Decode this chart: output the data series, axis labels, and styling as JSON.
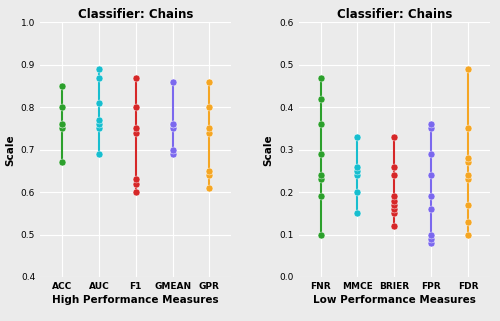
{
  "left_title": "Classifier: Chains",
  "right_title": "Classifier: Chains",
  "left_xlabel": "High Performance Measures",
  "right_xlabel": "Low Performance Measures",
  "ylabel": "Scale",
  "left_categories": [
    "ACC",
    "AUC",
    "F1",
    "GMEAN",
    "GPR"
  ],
  "right_categories": [
    "FNR",
    "MMCE",
    "BRIER",
    "FPR",
    "FDR"
  ],
  "left_ylim": [
    0.4,
    1.0
  ],
  "right_ylim": [
    0.0,
    0.6
  ],
  "left_yticks": [
    0.4,
    0.5,
    0.6,
    0.7,
    0.8,
    0.9,
    1.0
  ],
  "right_yticks": [
    0.0,
    0.1,
    0.2,
    0.3,
    0.4,
    0.5,
    0.6
  ],
  "colors": {
    "ACC": "#2ca02c",
    "AUC": "#17becf",
    "F1": "#d62728",
    "GMEAN": "#7b68ee",
    "GPR": "#f5a623",
    "FNR": "#2ca02c",
    "MMCE": "#17becf",
    "BRIER": "#d62728",
    "FPR": "#7b68ee",
    "FDR": "#f5a623"
  },
  "left_data": {
    "ACC": [
      0.67,
      0.75,
      0.76,
      0.76,
      0.8,
      0.85
    ],
    "AUC": [
      0.69,
      0.75,
      0.76,
      0.77,
      0.81,
      0.87,
      0.89
    ],
    "F1": [
      0.6,
      0.62,
      0.63,
      0.74,
      0.75,
      0.8,
      0.87
    ],
    "GMEAN": [
      0.69,
      0.7,
      0.75,
      0.76,
      0.76,
      0.86
    ],
    "GPR": [
      0.61,
      0.64,
      0.65,
      0.74,
      0.75,
      0.8,
      0.86
    ]
  },
  "right_data": {
    "FNR": [
      0.1,
      0.19,
      0.23,
      0.24,
      0.29,
      0.36,
      0.42,
      0.47
    ],
    "MMCE": [
      0.15,
      0.2,
      0.24,
      0.25,
      0.26,
      0.33
    ],
    "BRIER": [
      0.12,
      0.15,
      0.16,
      0.17,
      0.18,
      0.19,
      0.24,
      0.26,
      0.33
    ],
    "FPR": [
      0.08,
      0.09,
      0.1,
      0.16,
      0.19,
      0.24,
      0.29,
      0.35,
      0.36
    ],
    "FDR": [
      0.1,
      0.13,
      0.17,
      0.23,
      0.24,
      0.27,
      0.28,
      0.35,
      0.49
    ]
  },
  "legend_left": [
    "ACC",
    "AUC",
    "F1",
    "GMEAN",
    "GPR"
  ],
  "legend_right": [
    "FNR",
    "MMCE",
    "BRIER",
    "FPR",
    "FDR"
  ],
  "background_color": "#ebebeb",
  "title_fontsize": 8.5,
  "label_fontsize": 7.5,
  "tick_fontsize": 6.5,
  "legend_fontsize": 6.5,
  "marker_size": 5
}
